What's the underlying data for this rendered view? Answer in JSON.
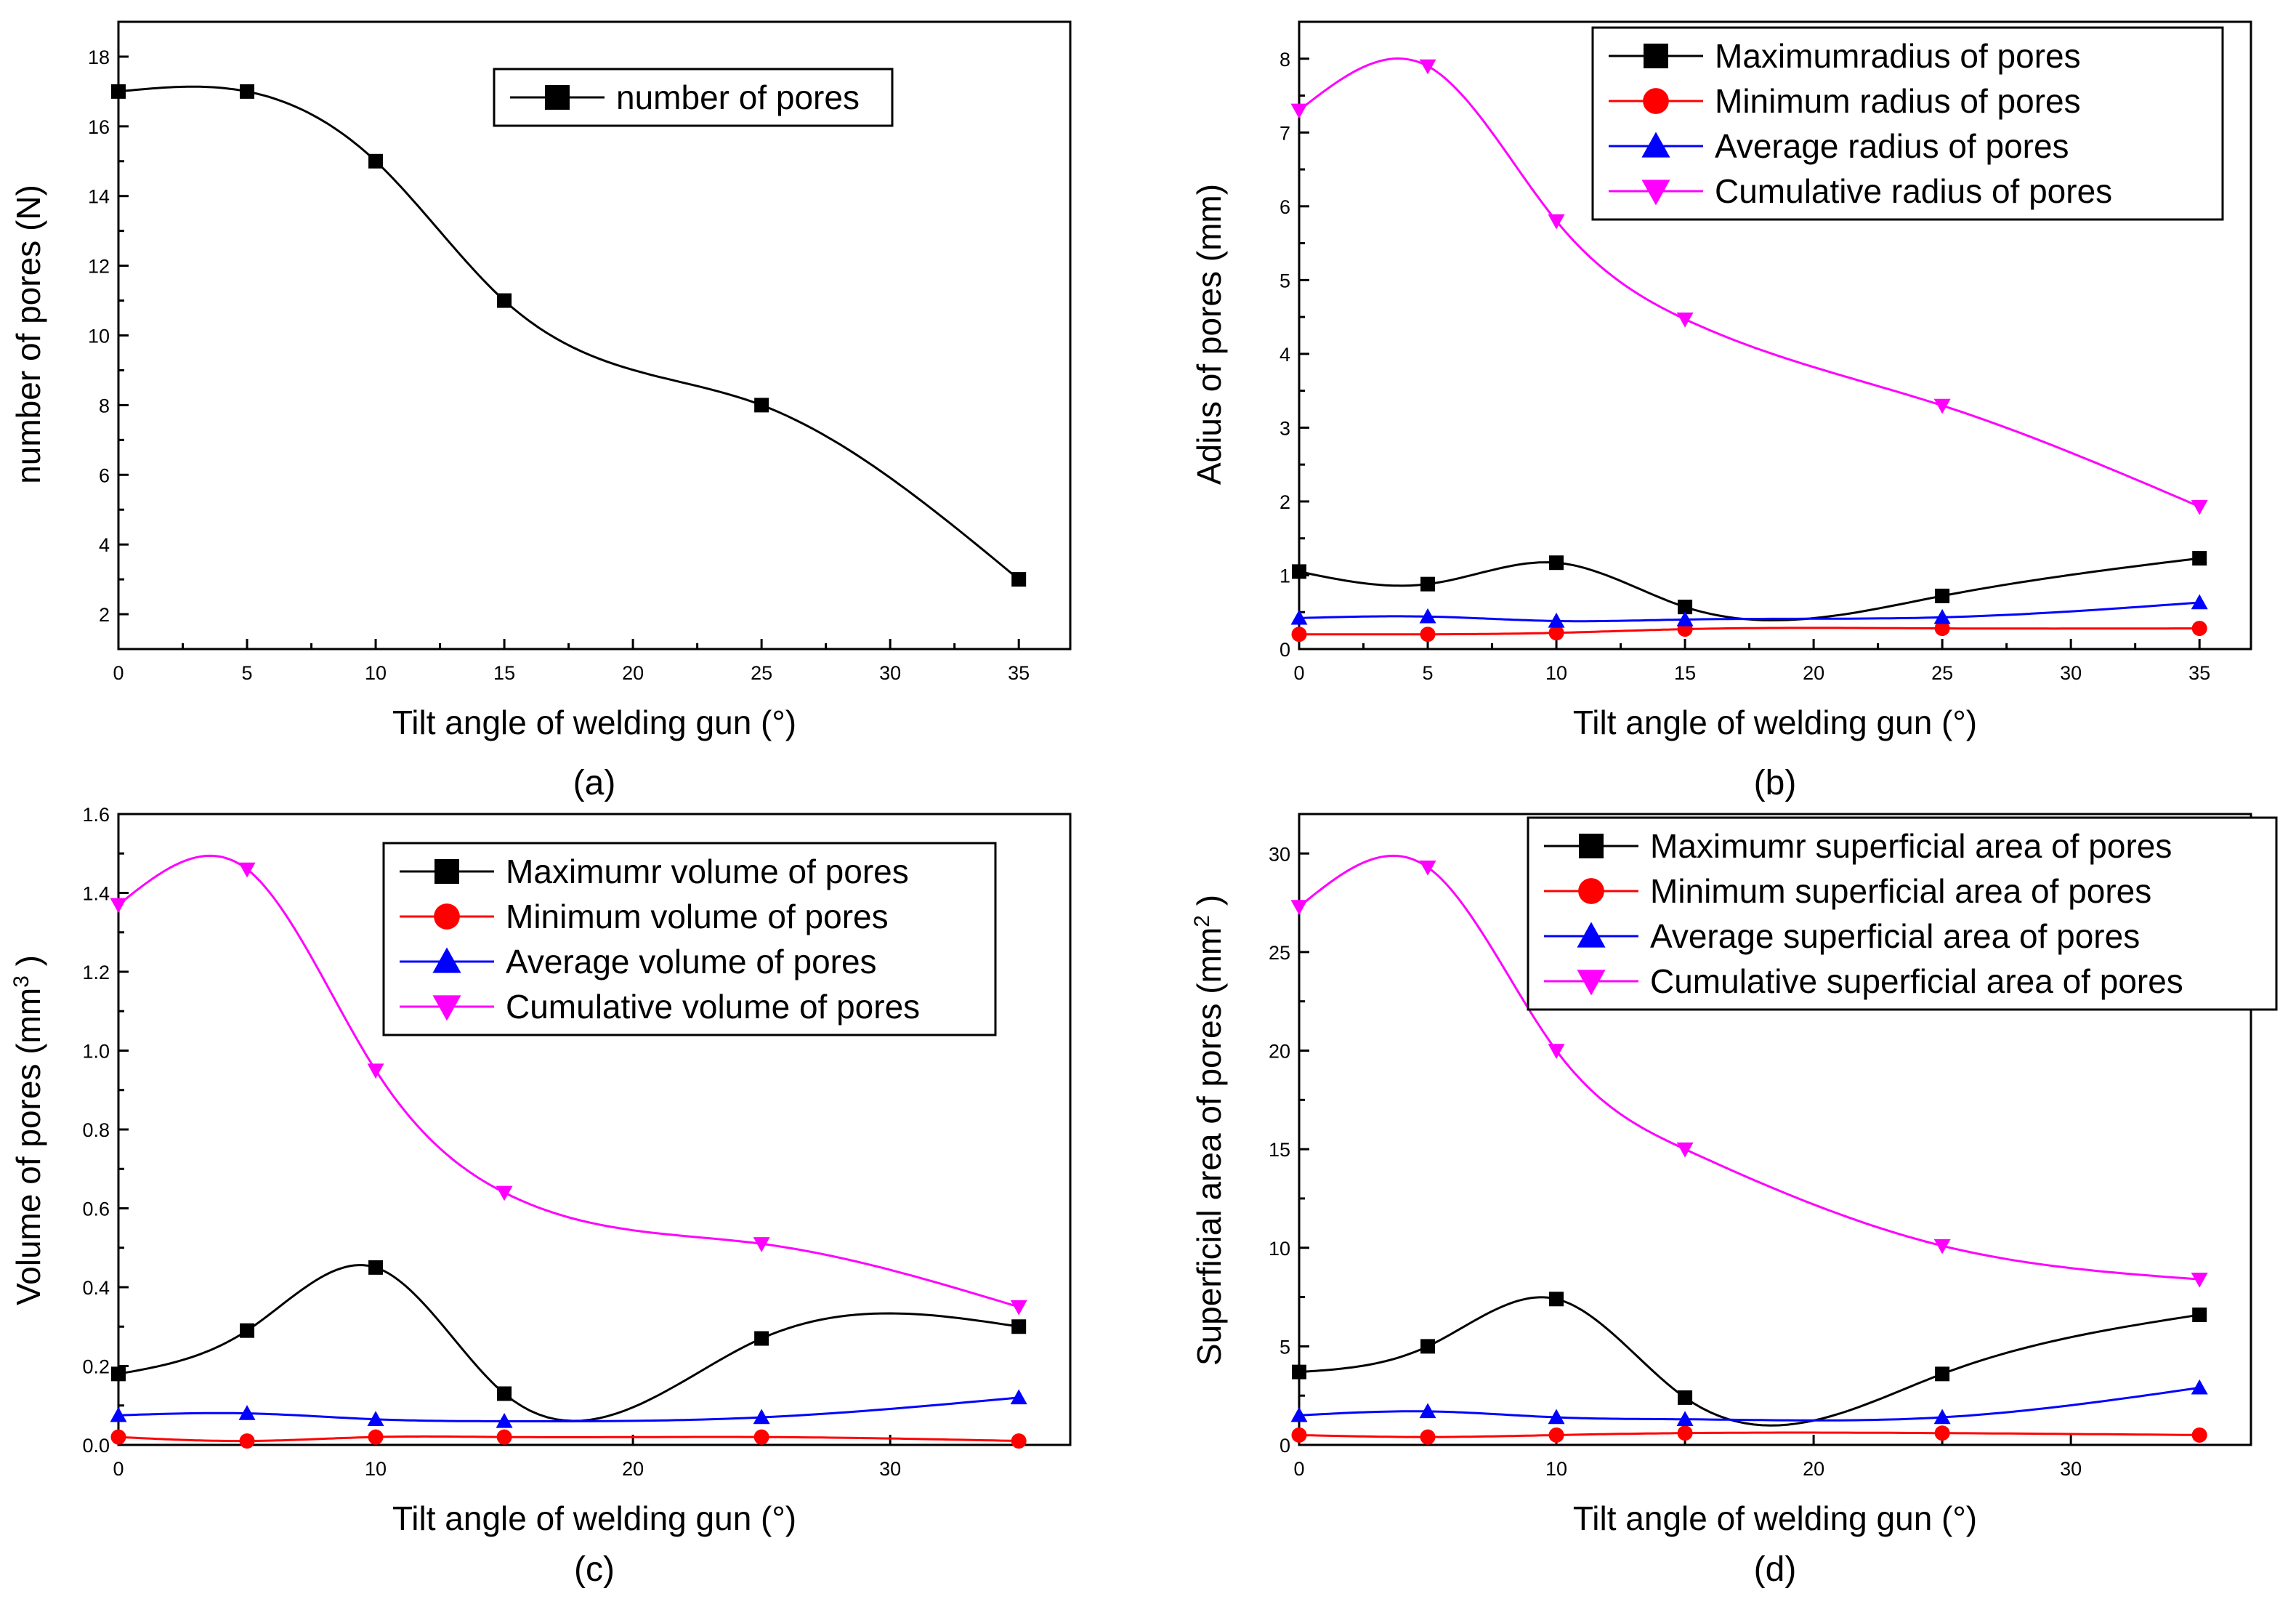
{
  "chart_data": [
    {
      "id": "a",
      "type": "scatter",
      "panel_label": "(a)",
      "xlabel": "Tilt angle of welding gun (°)",
      "ylabel": "number of pores (N)",
      "xlim": [
        0,
        37
      ],
      "ylim": [
        1,
        19
      ],
      "xticks": [
        0,
        5,
        10,
        15,
        20,
        25,
        30,
        35
      ],
      "yticks": [
        2,
        4,
        6,
        8,
        10,
        12,
        14,
        16,
        18
      ],
      "legend_position": "top-center",
      "x": [
        0,
        5,
        10,
        15,
        25,
        35
      ],
      "series": [
        {
          "name": "number of pores",
          "marker": "square",
          "color": "#000000",
          "values": [
            17,
            17,
            15,
            11,
            8,
            3
          ]
        }
      ]
    },
    {
      "id": "b",
      "type": "scatter",
      "panel_label": "(b)",
      "xlabel": "Tilt angle of welding gun (°)",
      "ylabel": "Adius of pores (mm)",
      "xlim": [
        0,
        37
      ],
      "ylim": [
        0,
        8.5
      ],
      "xticks": [
        0,
        5,
        10,
        15,
        20,
        25,
        30,
        35
      ],
      "yticks": [
        0,
        1,
        2,
        3,
        4,
        5,
        6,
        7,
        8
      ],
      "legend_position": "top-right",
      "x": [
        0,
        5,
        10,
        15,
        25,
        35
      ],
      "series": [
        {
          "name": "Maximumradius of pores",
          "marker": "square",
          "color": "#000000",
          "values": [
            1.05,
            0.88,
            1.17,
            0.57,
            0.72,
            1.23
          ]
        },
        {
          "name": "Minimum radius of pores",
          "marker": "circle",
          "color": "#ff0000",
          "values": [
            0.2,
            0.2,
            0.22,
            0.27,
            0.28,
            0.28
          ]
        },
        {
          "name": "Average radius of pores",
          "marker": "triangle-up",
          "color": "#0000ff",
          "values": [
            0.42,
            0.44,
            0.38,
            0.4,
            0.43,
            0.63
          ]
        },
        {
          "name": "Cumulative radius of pores",
          "marker": "triangle-down",
          "color": "#ff00ff",
          "values": [
            7.3,
            7.9,
            5.8,
            4.47,
            3.3,
            1.93
          ]
        }
      ]
    },
    {
      "id": "c",
      "type": "scatter",
      "panel_label": "(c)",
      "xlabel": "Tilt angle of welding gun (°)",
      "ylabel": "Volume of pores (mm",
      "ylabel_sup": "3",
      "ylabel_end": ")",
      "xlim": [
        0,
        37
      ],
      "ylim": [
        0,
        1.6
      ],
      "xticks": [
        0,
        10,
        20,
        30
      ],
      "yticks": [
        0.0,
        0.2,
        0.4,
        0.6,
        0.8,
        1.0,
        1.2,
        1.4,
        1.6
      ],
      "yticklabels": [
        "0.0",
        "0.2",
        "0.4",
        "0.6",
        "0.8",
        "1.0",
        "1.2",
        "1.4",
        "1.6"
      ],
      "legend_position": "top-right",
      "x": [
        0,
        5,
        10,
        15,
        25,
        35
      ],
      "series": [
        {
          "name": "Maximumr volume of pores",
          "marker": "square",
          "color": "#000000",
          "values": [
            0.18,
            0.29,
            0.45,
            0.13,
            0.27,
            0.3
          ]
        },
        {
          "name": "Minimum  volume of pores",
          "marker": "circle",
          "color": "#ff0000",
          "values": [
            0.02,
            0.01,
            0.02,
            0.02,
            0.02,
            0.01
          ]
        },
        {
          "name": "Average  volume of pores",
          "marker": "triangle-up",
          "color": "#0000ff",
          "values": [
            0.075,
            0.08,
            0.065,
            0.06,
            0.07,
            0.12
          ]
        },
        {
          "name": "Cumulative  volume of pores",
          "marker": "triangle-down",
          "color": "#ff00ff",
          "values": [
            1.37,
            1.46,
            0.95,
            0.64,
            0.51,
            0.35
          ]
        }
      ]
    },
    {
      "id": "d",
      "type": "scatter",
      "panel_label": "(d)",
      "xlabel": "Tilt angle of welding gun (°)",
      "ylabel": "Superficial area of pores (mm",
      "ylabel_sup": "2",
      "ylabel_end": ")",
      "xlim": [
        0,
        37
      ],
      "ylim": [
        0,
        32
      ],
      "xticks": [
        0,
        10,
        20,
        30
      ],
      "yticks": [
        0,
        5,
        10,
        15,
        20,
        25,
        30
      ],
      "legend_position": "top-right",
      "x": [
        0,
        5,
        10,
        15,
        25,
        35
      ],
      "series": [
        {
          "name": "Maximumr superficial area of pores",
          "marker": "square",
          "color": "#000000",
          "values": [
            3.7,
            5.0,
            7.4,
            2.4,
            3.6,
            6.6
          ]
        },
        {
          "name": "Minimum  superficial area  of pores",
          "marker": "circle",
          "color": "#ff0000",
          "values": [
            0.5,
            0.4,
            0.5,
            0.6,
            0.6,
            0.5
          ]
        },
        {
          "name": "Average  superficial area of pores",
          "marker": "triangle-up",
          "color": "#0000ff",
          "values": [
            1.5,
            1.7,
            1.4,
            1.3,
            1.4,
            2.9
          ]
        },
        {
          "name": "Cumulative  superficial area of pores",
          "marker": "triangle-down",
          "color": "#ff00ff",
          "values": [
            27.3,
            29.3,
            20.0,
            15.0,
            10.1,
            8.4
          ]
        }
      ]
    }
  ]
}
